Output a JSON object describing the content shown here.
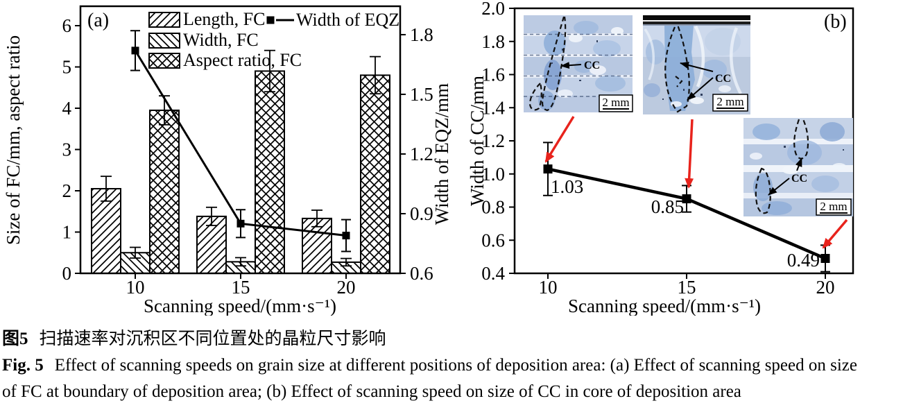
{
  "figure_caption": {
    "zh_label": "图5",
    "zh_text": "扫描速率对沉积区不同位置处的晶粒尺寸影响",
    "en_label": "Fig. 5",
    "en_text_line1": "Effect of scanning speeds on grain size at different positions of deposition area: (a) Effect of scanning speed on size",
    "en_text_line2": "of FC at boundary of deposition area; (b) Effect of scanning speed on size of CC in core of deposition area"
  },
  "chart_data": [
    {
      "panel": "(a)",
      "type": "bar",
      "subtype": "grouped-bars-with-secondary-axis-line",
      "categories": [
        10,
        15,
        20
      ],
      "xticks": [
        "10",
        "15",
        "20"
      ],
      "xlabel": "Scanning speed/(mm·s⁻¹)",
      "ylabel_left": "Size of FC/mm, aspect ratio",
      "ylabel_right": "Width of EQZ/mm",
      "ylim_left": [
        0,
        6.5
      ],
      "ylim_right": [
        0.6,
        1.85
      ],
      "yticks_left": [
        "0",
        "1",
        "2",
        "3",
        "4",
        "5",
        "6"
      ],
      "yticks_right": [
        "0.6",
        "0.9",
        "1.2",
        "1.5",
        "1.8"
      ],
      "grid": "off",
      "legend_position": "top-inside",
      "series": [
        {
          "name": "Length, FC",
          "hatch": "diagonal-forward",
          "values": [
            2.05,
            1.38,
            1.33
          ],
          "errors": [
            0.3,
            0.22,
            0.2
          ]
        },
        {
          "name": "Width, FC",
          "hatch": "diagonal-backward",
          "values": [
            0.5,
            0.28,
            0.27
          ],
          "errors": [
            0.13,
            0.1,
            0.09
          ]
        },
        {
          "name": "Aspect ratio, FC",
          "hatch": "crosshatch",
          "values": [
            3.95,
            4.9,
            4.8
          ],
          "errors": [
            0.35,
            0.5,
            0.45
          ]
        }
      ],
      "line_series": {
        "name": "Width of EQZ",
        "axis": "right",
        "marker": "square",
        "values": [
          1.72,
          0.85,
          0.79
        ],
        "errors": [
          0.1,
          0.07,
          0.08
        ]
      }
    },
    {
      "panel": "(b)",
      "type": "line",
      "series_name": "Width of CC",
      "marker": "square",
      "x": [
        10,
        15,
        20
      ],
      "xticks": [
        "10",
        "15",
        "20"
      ],
      "values": [
        1.03,
        0.85,
        0.49
      ],
      "errors": [
        0.16,
        0.08,
        0.08
      ],
      "point_labels": [
        "1.03",
        "0.85",
        "0.49"
      ],
      "xlabel": "Scanning speed/(mm·s⁻¹)",
      "ylabel": "Width of CC/mm",
      "ylim": [
        0.4,
        2.0
      ],
      "yticks": [
        "0.4",
        "0.6",
        "0.8",
        "1.0",
        "1.2",
        "1.4",
        "1.6",
        "1.8",
        "2.0"
      ],
      "grid": "off"
    }
  ],
  "insets": [
    {
      "cc_label": "CC",
      "scale_label": "2 mm"
    },
    {
      "cc_label": "CC",
      "scale_label": "2 mm"
    },
    {
      "cc_label": "CC",
      "scale_label": "2 mm"
    }
  ],
  "colors": {
    "axis": "#000000",
    "red_arrow": "#e8231c",
    "micrograph_base": "#bfcde4",
    "micrograph_dark_blue": "#8badd8",
    "micrograph_light": "#eff3fa"
  }
}
